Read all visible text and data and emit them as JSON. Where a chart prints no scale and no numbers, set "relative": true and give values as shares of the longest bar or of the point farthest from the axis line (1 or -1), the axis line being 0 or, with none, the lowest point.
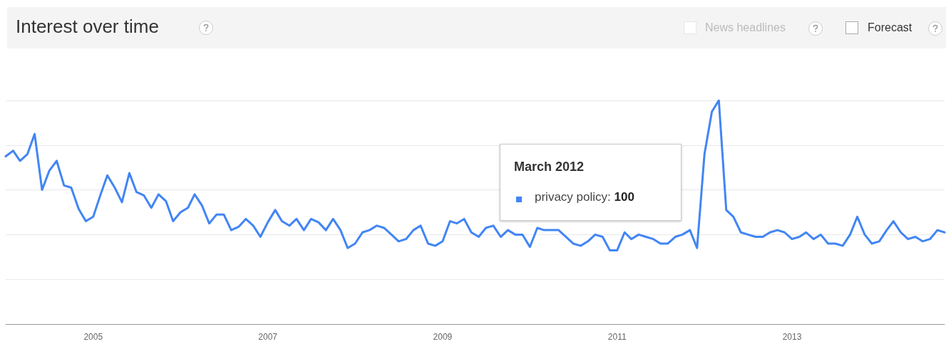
{
  "chart_data": {
    "type": "line",
    "title": "Interest over time",
    "relative": true,
    "grid": "y",
    "marker": "none",
    "line_style": "solid",
    "annotations": [
      "March 2012",
      "privacy policy: 100",
      "News headlines",
      "Forecast"
    ],
    "xlim": [
      "2004-01",
      "2014-10"
    ],
    "xticks": [
      "2005",
      "2007",
      "2009",
      "2011",
      "2013"
    ],
    "x": [
      "2004-01",
      "2004-02",
      "2004-03",
      "2004-04",
      "2004-05",
      "2004-06",
      "2004-07",
      "2004-08",
      "2004-09",
      "2004-10",
      "2004-11",
      "2004-12",
      "2005-01",
      "2005-02",
      "2005-03",
      "2005-04",
      "2005-05",
      "2005-06",
      "2005-07",
      "2005-08",
      "2005-09",
      "2005-10",
      "2005-11",
      "2005-12",
      "2006-01",
      "2006-02",
      "2006-03",
      "2006-04",
      "2006-05",
      "2006-06",
      "2006-07",
      "2006-08",
      "2006-09",
      "2006-10",
      "2006-11",
      "2006-12",
      "2007-01",
      "2007-02",
      "2007-03",
      "2007-04",
      "2007-05",
      "2007-06",
      "2007-07",
      "2007-08",
      "2007-09",
      "2007-10",
      "2007-11",
      "2007-12",
      "2008-01",
      "2008-02",
      "2008-03",
      "2008-04",
      "2008-05",
      "2008-06",
      "2008-07",
      "2008-08",
      "2008-09",
      "2008-10",
      "2008-11",
      "2008-12",
      "2009-01",
      "2009-02",
      "2009-03",
      "2009-04",
      "2009-05",
      "2009-06",
      "2009-07",
      "2009-08",
      "2009-09",
      "2009-10",
      "2009-11",
      "2009-12",
      "2010-01",
      "2010-02",
      "2010-03",
      "2010-04",
      "2010-05",
      "2010-06",
      "2010-07",
      "2010-08",
      "2010-09",
      "2010-10",
      "2010-11",
      "2010-12",
      "2011-01",
      "2011-02",
      "2011-03",
      "2011-04",
      "2011-05",
      "2011-06",
      "2011-07",
      "2011-08",
      "2011-09",
      "2011-10",
      "2011-11",
      "2011-12",
      "2012-01",
      "2012-02",
      "2012-03",
      "2012-04",
      "2012-05",
      "2012-06",
      "2012-07",
      "2012-08",
      "2012-09",
      "2012-10",
      "2012-11",
      "2012-12",
      "2013-01",
      "2013-02",
      "2013-03",
      "2013-04",
      "2013-05",
      "2013-06",
      "2013-07",
      "2013-08",
      "2013-09",
      "2013-10",
      "2013-11",
      "2013-12",
      "2014-01",
      "2014-02",
      "2014-03",
      "2014-04",
      "2014-05",
      "2014-06",
      "2014-07",
      "2014-08",
      "2014-09",
      "2014-10"
    ],
    "series": [
      {
        "color": "#4285f4",
        "values": [
          0.75,
          0.775,
          0.73,
          0.76,
          0.85,
          0.6,
          0.685,
          0.73,
          0.62,
          0.61,
          0.515,
          0.46,
          0.48,
          0.58,
          0.665,
          0.61,
          0.545,
          0.675,
          0.59,
          0.575,
          0.52,
          0.58,
          0.55,
          0.46,
          0.5,
          0.52,
          0.58,
          0.53,
          0.45,
          0.49,
          0.49,
          0.42,
          0.435,
          0.47,
          0.44,
          0.39,
          0.455,
          0.51,
          0.46,
          0.44,
          0.47,
          0.42,
          0.47,
          0.455,
          0.42,
          0.47,
          0.42,
          0.34,
          0.36,
          0.41,
          0.42,
          0.44,
          0.43,
          0.4,
          0.37,
          0.38,
          0.42,
          0.44,
          0.36,
          0.35,
          0.37,
          0.46,
          0.45,
          0.47,
          0.41,
          0.39,
          0.43,
          0.44,
          0.39,
          0.42,
          0.4,
          0.4,
          0.345,
          0.43,
          0.42,
          0.42,
          0.42,
          0.39,
          0.36,
          0.35,
          0.37,
          0.4,
          0.39,
          0.33,
          0.33,
          0.41,
          0.38,
          0.4,
          0.39,
          0.38,
          0.36,
          0.36,
          0.39,
          0.4,
          0.42,
          0.34,
          0.76,
          0.95,
          1,
          0.51,
          0.48,
          0.41,
          0.4,
          0.39,
          0.39,
          0.41,
          0.42,
          0.41,
          0.38,
          0.39,
          0.41,
          0.38,
          0.4,
          0.36,
          0.36,
          0.35,
          0.4,
          0.48,
          0.4,
          0.36,
          0.37,
          0.42,
          0.46,
          0.41,
          0.38,
          0.39,
          0.37,
          0.38,
          0.42,
          0.41
        ]
      }
    ]
  }
}
